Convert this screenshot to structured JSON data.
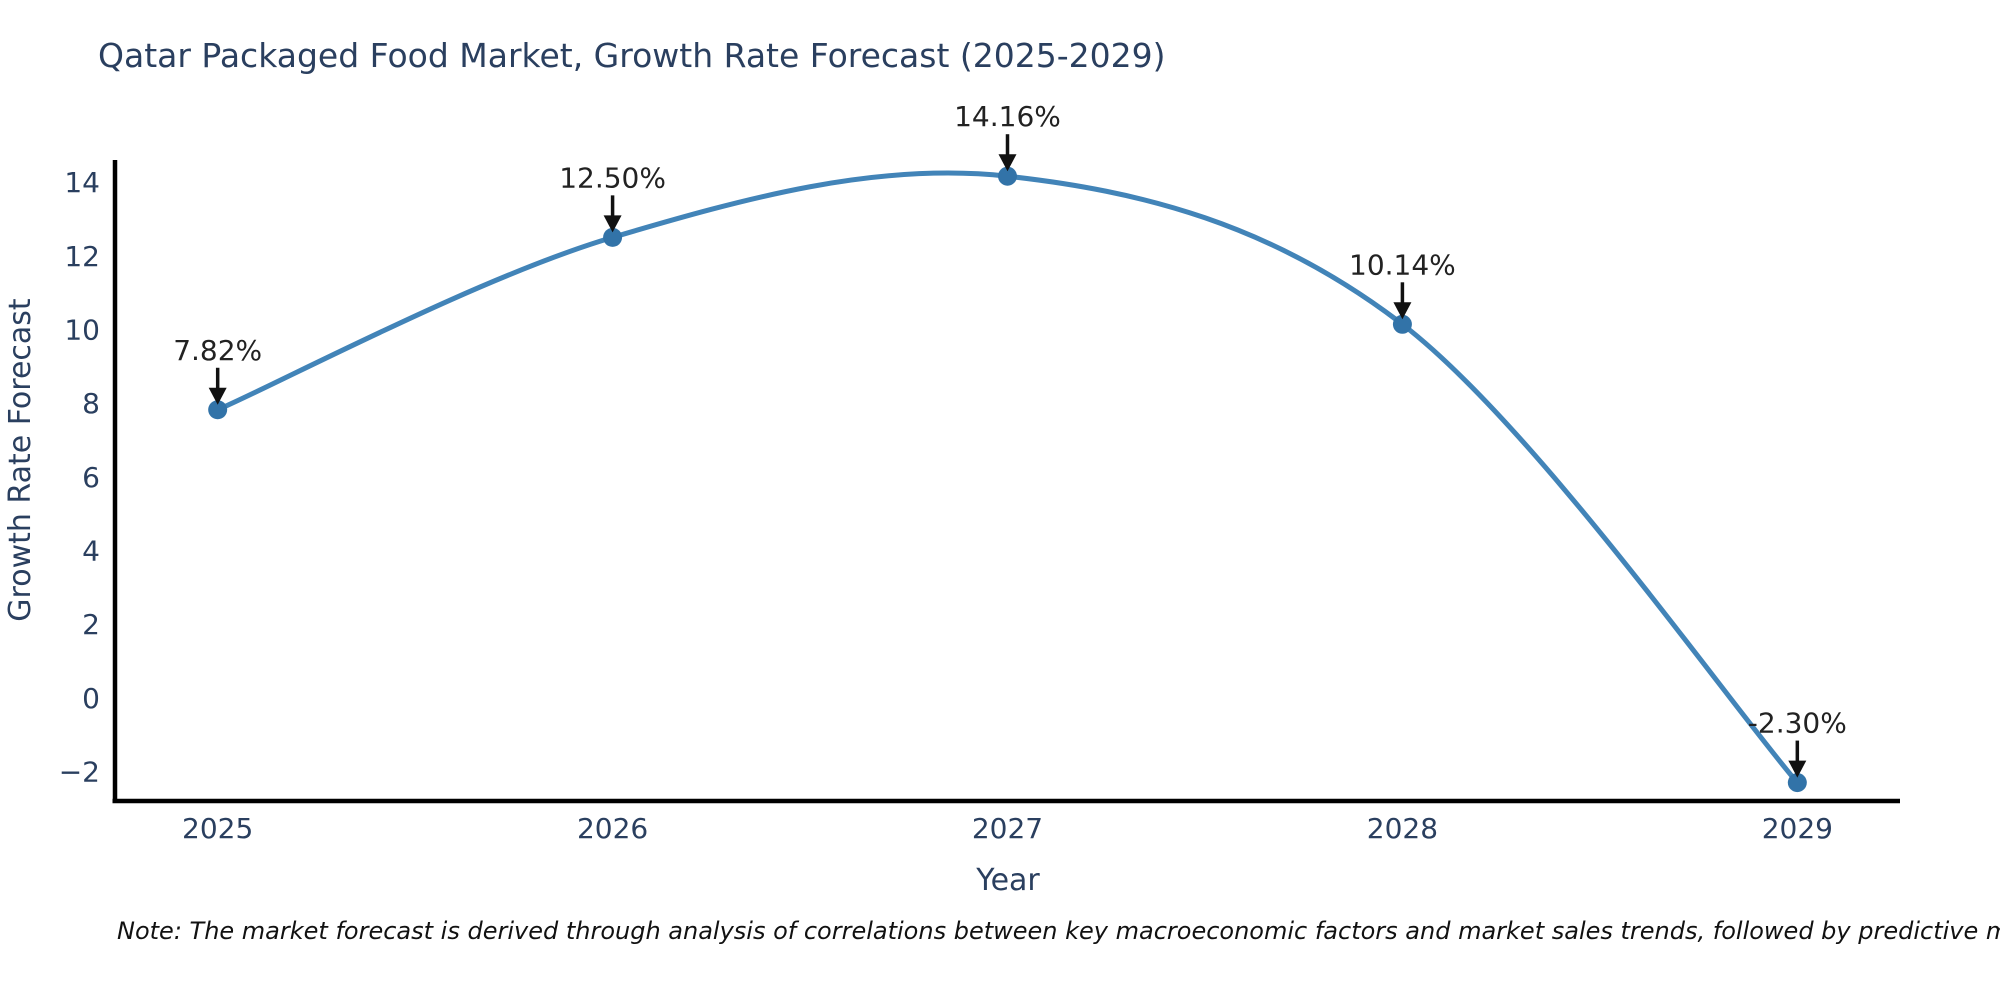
{
  "chart_data": {
    "type": "line",
    "title": "Qatar Packaged Food Market, Growth Rate Forecast (2025-2029)",
    "xlabel": "Year",
    "ylabel": "Growth Rate Forecast",
    "x": [
      2025,
      2026,
      2027,
      2028,
      2029
    ],
    "series": [
      {
        "name": "Growth Rate Forecast",
        "values": [
          7.82,
          12.5,
          14.16,
          10.14,
          -2.3
        ]
      }
    ],
    "point_labels": [
      "7.82%",
      "12.50%",
      "14.16%",
      "10.14%",
      "-2.30%"
    ],
    "line_shape": "spline",
    "grid": false,
    "legend_position": "none",
    "xticks": {
      "values": [
        2025,
        2026,
        2027,
        2028,
        2029
      ],
      "labels": [
        "2025",
        "2026",
        "2027",
        "2028",
        "2029"
      ]
    },
    "yticks": {
      "values": [
        -2,
        0,
        2,
        4,
        6,
        8,
        10,
        12,
        14
      ],
      "labels": [
        "−2",
        "0",
        "2",
        "4",
        "6",
        "8",
        "10",
        "12",
        "14"
      ]
    },
    "xlim": [
      2024.74,
      2029.26
    ],
    "ylim": [
      -2.8,
      14.6
    ],
    "colors": {
      "line": "#4284b8",
      "marker": "#3273a8",
      "annotation_text": "#222222",
      "arrow": "#111111",
      "axis_text": "#2a3f5f",
      "title_text": "#2a3f5f",
      "axis_line": "#000000",
      "background": "#ffffff"
    }
  },
  "note": {
    "text": "Note: The market forecast is derived through analysis of correlations between key macroeconomic factors and market sales trends, followed by predictive modeling to project future sales"
  }
}
